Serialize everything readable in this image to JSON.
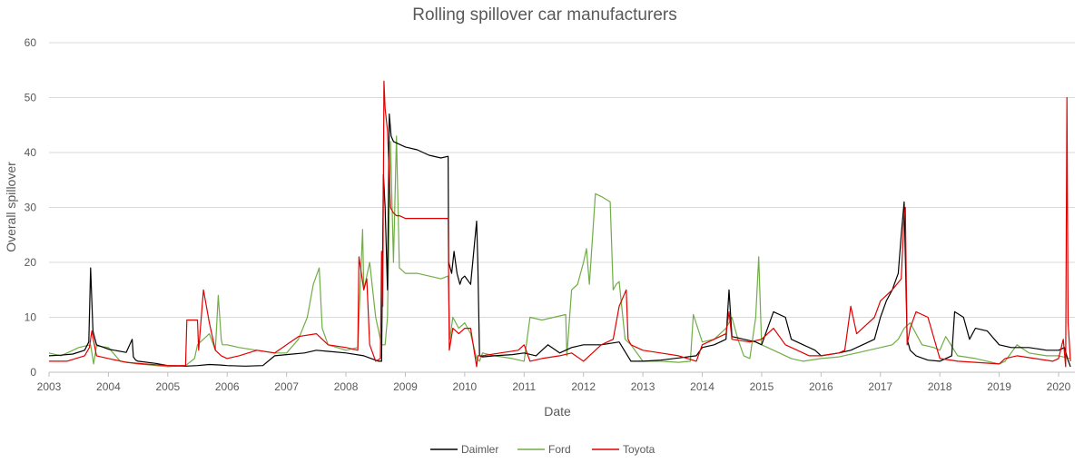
{
  "chart_data": {
    "type": "line",
    "title": "Rolling spillover car manufacturers",
    "xlabel": "Date",
    "ylabel": "Overall spillover",
    "xlim": [
      2003,
      2020.3
    ],
    "ylim": [
      0,
      60
    ],
    "x_ticks": [
      "2003",
      "2004",
      "2005",
      "2006",
      "2007",
      "2008",
      "2009",
      "2010",
      "2011",
      "2012",
      "2013",
      "2014",
      "2015",
      "2016",
      "2017",
      "2018",
      "2019",
      "2020"
    ],
    "y_ticks": [
      "0",
      "10",
      "20",
      "30",
      "40",
      "50",
      "60"
    ],
    "grid": "horizontal",
    "legend_position": "bottom-center",
    "colors": {
      "Daimler": "#000000",
      "Ford": "#70ad47",
      "Toyota": "#e00000"
    },
    "series": [
      {
        "name": "Daimler",
        "x": [
          2003.0,
          2003.2,
          2003.4,
          2003.6,
          2003.67,
          2003.7,
          2003.74,
          2003.8,
          2004.0,
          2004.3,
          2004.4,
          2004.42,
          2004.46,
          2004.5,
          2004.8,
          2005.0,
          2005.3,
          2005.5,
          2005.7,
          2005.9,
          2006.0,
          2006.3,
          2006.6,
          2006.8,
          2007.0,
          2007.3,
          2007.5,
          2007.7,
          2008.0,
          2008.3,
          2008.55,
          2008.6,
          2008.63,
          2008.66,
          2008.7,
          2008.73,
          2008.76,
          2008.8,
          2008.9,
          2009.0,
          2009.2,
          2009.4,
          2009.6,
          2009.72,
          2009.73,
          2009.78,
          2009.82,
          2009.87,
          2009.92,
          2009.95,
          2010.0,
          2010.1,
          2010.2,
          2010.22,
          2010.25,
          2010.3,
          2010.5,
          2010.8,
          2011.0,
          2011.2,
          2011.4,
          2011.6,
          2011.8,
          2012.0,
          2012.3,
          2012.6,
          2012.8,
          2013.0,
          2013.3,
          2013.6,
          2013.9,
          2014.0,
          2014.2,
          2014.4,
          2014.45,
          2014.5,
          2014.7,
          2014.9,
          2015.0,
          2015.2,
          2015.4,
          2015.5,
          2015.7,
          2015.9,
          2016.0,
          2016.3,
          2016.5,
          2016.7,
          2016.9,
          2017.0,
          2017.1,
          2017.2,
          2017.3,
          2017.35,
          2017.4,
          2017.45,
          2017.5,
          2017.6,
          2017.8,
          2018.0,
          2018.2,
          2018.25,
          2018.4,
          2018.5,
          2018.6,
          2018.8,
          2019.0,
          2019.2,
          2019.5,
          2019.8,
          2020.0,
          2020.1,
          2020.15,
          2020.2
        ],
        "y": [
          3.0,
          3.1,
          3.3,
          4.0,
          5.5,
          19.0,
          7.5,
          5.0,
          4.2,
          3.6,
          6.0,
          2.8,
          2.2,
          2.0,
          1.6,
          1.2,
          1.1,
          1.2,
          1.4,
          1.3,
          1.2,
          1.1,
          1.2,
          3.0,
          3.2,
          3.5,
          4.0,
          3.8,
          3.5,
          3.0,
          2.0,
          2.0,
          36.0,
          30.0,
          15.0,
          47.0,
          43.0,
          42.0,
          41.5,
          41.0,
          40.5,
          39.5,
          39.0,
          39.3,
          20.0,
          18.0,
          22.0,
          18.0,
          16.0,
          17.0,
          17.5,
          16.0,
          27.5,
          20.0,
          3.0,
          2.8,
          3.0,
          3.2,
          3.5,
          3.0,
          5.0,
          3.5,
          4.5,
          5.0,
          5.0,
          5.5,
          2.0,
          2.0,
          2.2,
          2.6,
          3.0,
          4.5,
          5.0,
          6.0,
          15.0,
          6.5,
          6.0,
          5.5,
          5.0,
          11.0,
          10.0,
          6.0,
          5.0,
          4.0,
          3.0,
          3.5,
          4.0,
          5.0,
          6.0,
          10.0,
          13.0,
          15.0,
          18.0,
          25.0,
          31.0,
          6.0,
          4.0,
          3.0,
          2.2,
          2.0,
          3.0,
          11.0,
          10.0,
          6.0,
          8.0,
          7.5,
          5.0,
          4.5,
          4.5,
          4.0,
          4.0,
          4.5,
          2.5,
          1.0
        ]
      },
      {
        "name": "Ford",
        "x": [
          2003.0,
          2003.2,
          2003.5,
          2003.7,
          2003.75,
          2003.8,
          2004.0,
          2004.2,
          2004.5,
          2004.8,
          2005.0,
          2005.3,
          2005.45,
          2005.5,
          2005.7,
          2005.8,
          2005.85,
          2005.9,
          2005.92,
          2006.0,
          2006.2,
          2006.5,
          2006.8,
          2007.0,
          2007.2,
          2007.35,
          2007.45,
          2007.55,
          2007.6,
          2007.7,
          2008.0,
          2008.2,
          2008.28,
          2008.3,
          2008.4,
          2008.5,
          2008.6,
          2008.66,
          2008.7,
          2008.75,
          2008.8,
          2008.85,
          2008.9,
          2009.0,
          2009.2,
          2009.4,
          2009.6,
          2009.72,
          2009.75,
          2009.8,
          2009.9,
          2010.0,
          2010.1,
          2010.2,
          2010.25,
          2010.3,
          2010.5,
          2010.8,
          2011.0,
          2011.1,
          2011.3,
          2011.5,
          2011.7,
          2011.72,
          2011.8,
          2011.9,
          2012.0,
          2012.05,
          2012.1,
          2012.2,
          2012.3,
          2012.45,
          2012.5,
          2012.55,
          2012.6,
          2012.7,
          2012.8,
          2013.0,
          2013.3,
          2013.6,
          2013.8,
          2013.85,
          2014.0,
          2014.2,
          2014.4,
          2014.5,
          2014.6,
          2014.7,
          2014.8,
          2014.9,
          2014.95,
          2015.0,
          2015.1,
          2015.2,
          2015.5,
          2015.7,
          2016.0,
          2016.3,
          2016.6,
          2016.8,
          2017.0,
          2017.2,
          2017.3,
          2017.4,
          2017.5,
          2017.7,
          2017.9,
          2018.0,
          2018.1,
          2018.3,
          2018.6,
          2019.0,
          2019.1,
          2019.3,
          2019.5,
          2019.8,
          2020.0,
          2020.2
        ],
        "y": [
          3.5,
          3.0,
          4.5,
          5.0,
          1.5,
          4.8,
          4.5,
          2.0,
          1.5,
          1.2,
          1.0,
          1.2,
          2.5,
          5.0,
          7.0,
          4.0,
          14.0,
          6.0,
          5.0,
          5.0,
          4.5,
          4.0,
          3.5,
          3.5,
          6.0,
          10.0,
          16.0,
          19.0,
          8.0,
          5.0,
          4.0,
          4.5,
          26.0,
          15.0,
          20.0,
          10.0,
          5.0,
          5.0,
          10.0,
          42.0,
          20.0,
          43.0,
          19.0,
          18.0,
          18.0,
          17.5,
          17.0,
          17.5,
          6.0,
          10.0,
          8.0,
          9.0,
          7.0,
          2.5,
          2.0,
          3.5,
          3.0,
          2.5,
          2.0,
          10.0,
          9.5,
          10.0,
          10.5,
          3.0,
          15.0,
          16.0,
          20.0,
          22.5,
          16.0,
          32.5,
          32.0,
          31.0,
          15.0,
          16.0,
          16.5,
          6.0,
          5.0,
          2.0,
          2.0,
          1.8,
          2.0,
          10.5,
          5.5,
          6.0,
          8.0,
          10.0,
          6.0,
          3.0,
          2.5,
          10.0,
          21.0,
          5.0,
          4.5,
          4.0,
          2.5,
          2.0,
          2.5,
          2.8,
          3.5,
          4.0,
          4.5,
          5.0,
          6.0,
          8.0,
          9.0,
          5.0,
          4.5,
          4.0,
          6.5,
          3.0,
          2.5,
          1.5,
          2.0,
          5.0,
          3.5,
          3.0,
          3.0,
          2.5
        ]
      },
      {
        "name": "Toyota",
        "x": [
          2003.0,
          2003.3,
          2003.6,
          2003.68,
          2003.72,
          2003.8,
          2004.0,
          2004.3,
          2004.6,
          2005.0,
          2005.3,
          2005.32,
          2005.5,
          2005.52,
          2005.6,
          2005.7,
          2005.8,
          2005.9,
          2006.0,
          2006.2,
          2006.5,
          2006.8,
          2007.0,
          2007.2,
          2007.5,
          2007.7,
          2008.0,
          2008.2,
          2008.22,
          2008.3,
          2008.35,
          2008.4,
          2008.5,
          2008.58,
          2008.6,
          2008.62,
          2008.64,
          2008.66,
          2008.68,
          2008.7,
          2008.75,
          2008.8,
          2008.85,
          2008.9,
          2009.0,
          2009.3,
          2009.6,
          2009.72,
          2009.74,
          2009.8,
          2009.9,
          2010.0,
          2010.1,
          2010.2,
          2010.22,
          2010.3,
          2010.6,
          2010.9,
          2011.0,
          2011.1,
          2011.3,
          2011.6,
          2011.8,
          2012.0,
          2012.3,
          2012.5,
          2012.6,
          2012.68,
          2012.72,
          2012.75,
          2012.8,
          2013.0,
          2013.3,
          2013.6,
          2013.9,
          2014.0,
          2014.2,
          2014.4,
          2014.45,
          2014.5,
          2014.8,
          2015.0,
          2015.2,
          2015.4,
          2015.6,
          2015.8,
          2016.0,
          2016.3,
          2016.4,
          2016.5,
          2016.6,
          2016.7,
          2016.9,
          2017.0,
          2017.2,
          2017.35,
          2017.4,
          2017.42,
          2017.45,
          2017.5,
          2017.6,
          2017.8,
          2018.0,
          2018.3,
          2018.6,
          2019.0,
          2019.1,
          2019.3,
          2019.6,
          2019.9,
          2020.0,
          2020.08,
          2020.12,
          2020.14,
          2020.16,
          2020.2
        ],
        "y": [
          2.0,
          2.0,
          3.0,
          4.5,
          7.5,
          3.0,
          2.5,
          1.8,
          1.5,
          1.2,
          1.2,
          9.5,
          9.5,
          4.0,
          15.0,
          9.0,
          4.0,
          3.0,
          2.5,
          3.0,
          4.0,
          3.5,
          5.0,
          6.5,
          7.0,
          5.0,
          4.5,
          4.0,
          21.0,
          15.0,
          17.0,
          5.0,
          2.0,
          2.5,
          22.0,
          12.0,
          53.0,
          48.0,
          46.0,
          44.0,
          30.0,
          29.0,
          28.5,
          28.5,
          28.0,
          28.0,
          28.0,
          28.0,
          4.0,
          8.0,
          7.0,
          8.0,
          8.0,
          1.0,
          3.0,
          3.0,
          3.5,
          4.0,
          5.0,
          2.0,
          2.5,
          3.0,
          3.5,
          2.0,
          5.0,
          6.0,
          12.0,
          14.0,
          15.0,
          6.0,
          5.0,
          4.0,
          3.5,
          3.0,
          2.0,
          5.0,
          6.0,
          7.0,
          11.0,
          6.0,
          5.5,
          6.0,
          8.0,
          5.0,
          4.0,
          3.0,
          3.0,
          3.5,
          4.0,
          12.0,
          7.0,
          8.0,
          10.0,
          13.0,
          15.0,
          17.0,
          29.0,
          30.0,
          5.0,
          8.0,
          11.0,
          10.0,
          2.5,
          2.0,
          1.8,
          1.5,
          2.5,
          3.0,
          2.5,
          2.0,
          2.5,
          6.0,
          1.0,
          50.0,
          9.0,
          2.0
        ]
      }
    ]
  }
}
